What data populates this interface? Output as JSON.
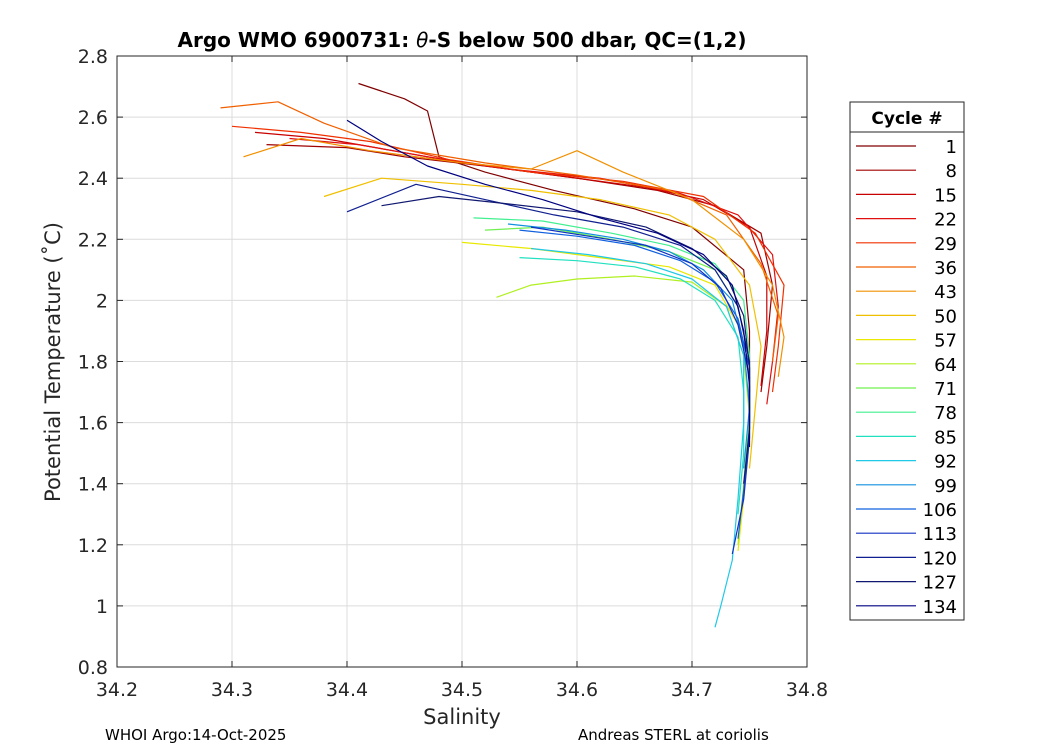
{
  "chart_data": {
    "type": "line",
    "title_prefix": "Argo WMO 6900731: ",
    "title_theta": "θ",
    "title_suffix": "-S below 500 dbar,  QC=(1,2)",
    "xlabel": "Salinity",
    "ylabel": "Potential Temperature (˚C)",
    "xlim": [
      34.2,
      34.8
    ],
    "ylim": [
      0.8,
      2.8
    ],
    "xticks": [
      "34.2",
      "34.3",
      "34.4",
      "34.5",
      "34.6",
      "34.7",
      "34.8"
    ],
    "yticks": [
      "0.8",
      "1",
      "1.2",
      "1.4",
      "1.6",
      "1.8",
      "2",
      "2.2",
      "2.4",
      "2.6",
      "2.8"
    ],
    "grid": true,
    "legend": {
      "title": "Cycle #",
      "position": "right",
      "entries": [
        "1",
        "8",
        "15",
        "22",
        "29",
        "36",
        "43",
        "50",
        "57",
        "64",
        "71",
        "78",
        "85",
        "92",
        "99",
        "106",
        "113",
        "120",
        "127",
        "134"
      ],
      "colors": [
        "#800000",
        "#a00000",
        "#c80000",
        "#e01010",
        "#f03000",
        "#f06000",
        "#f09000",
        "#f0c000",
        "#e8e800",
        "#b0f020",
        "#70f050",
        "#40f090",
        "#20e0c0",
        "#20c8e8",
        "#1090e0",
        "#1060e0",
        "#1030c0",
        "#102090",
        "#101870",
        "#000080"
      ]
    },
    "series": [
      {
        "values": [
          [
            34.41,
            2.71
          ],
          [
            34.45,
            2.66
          ],
          [
            34.47,
            2.62
          ],
          [
            34.48,
            2.47
          ],
          [
            34.52,
            2.42
          ],
          [
            34.58,
            2.36
          ],
          [
            34.65,
            2.3
          ],
          [
            34.7,
            2.24
          ],
          [
            34.745,
            2.1
          ],
          [
            34.75,
            1.9
          ],
          [
            34.75,
            1.7
          ]
        ]
      },
      {
        "values": [
          [
            34.33,
            2.51
          ],
          [
            34.4,
            2.5
          ],
          [
            34.45,
            2.47
          ],
          [
            34.52,
            2.44
          ],
          [
            34.6,
            2.4
          ],
          [
            34.67,
            2.36
          ],
          [
            34.72,
            2.31
          ],
          [
            34.76,
            2.22
          ],
          [
            34.77,
            2.05
          ],
          [
            34.765,
            1.85
          ],
          [
            34.76,
            1.7
          ]
        ]
      },
      {
        "values": [
          [
            34.32,
            2.55
          ],
          [
            34.38,
            2.53
          ],
          [
            34.44,
            2.49
          ],
          [
            34.5,
            2.45
          ],
          [
            34.58,
            2.41
          ],
          [
            34.66,
            2.37
          ],
          [
            34.71,
            2.33
          ],
          [
            34.75,
            2.24
          ],
          [
            34.765,
            2.08
          ],
          [
            34.765,
            1.9
          ],
          [
            34.76,
            1.72
          ]
        ]
      },
      {
        "values": [
          [
            34.35,
            2.53
          ],
          [
            34.41,
            2.51
          ],
          [
            34.47,
            2.47
          ],
          [
            34.54,
            2.43
          ],
          [
            34.62,
            2.4
          ],
          [
            34.69,
            2.35
          ],
          [
            34.74,
            2.28
          ],
          [
            34.77,
            2.15
          ],
          [
            34.775,
            1.98
          ],
          [
            34.77,
            1.8
          ],
          [
            34.765,
            1.66
          ]
        ]
      },
      {
        "values": [
          [
            34.3,
            2.57
          ],
          [
            34.36,
            2.55
          ],
          [
            34.42,
            2.52
          ],
          [
            34.49,
            2.46
          ],
          [
            34.56,
            2.42
          ],
          [
            34.64,
            2.39
          ],
          [
            34.71,
            2.34
          ],
          [
            34.755,
            2.22
          ],
          [
            34.78,
            2.05
          ],
          [
            34.775,
            1.85
          ],
          [
            34.77,
            1.7
          ]
        ]
      },
      {
        "values": [
          [
            34.29,
            2.63
          ],
          [
            34.34,
            2.65
          ],
          [
            34.38,
            2.58
          ],
          [
            34.44,
            2.5
          ],
          [
            34.52,
            2.45
          ],
          [
            34.6,
            2.41
          ],
          [
            34.68,
            2.36
          ],
          [
            34.73,
            2.28
          ],
          [
            34.76,
            2.12
          ],
          [
            34.775,
            1.95
          ],
          [
            34.77,
            1.8
          ]
        ]
      },
      {
        "values": [
          [
            34.31,
            2.47
          ],
          [
            34.36,
            2.53
          ],
          [
            34.42,
            2.49
          ],
          [
            34.5,
            2.45
          ],
          [
            34.56,
            2.43
          ],
          [
            34.6,
            2.49
          ],
          [
            34.64,
            2.42
          ],
          [
            34.7,
            2.33
          ],
          [
            34.745,
            2.2
          ],
          [
            34.77,
            2.05
          ],
          [
            34.78,
            1.88
          ],
          [
            34.775,
            1.75
          ]
        ]
      },
      {
        "values": [
          [
            34.38,
            2.34
          ],
          [
            34.43,
            2.4
          ],
          [
            34.5,
            2.38
          ],
          [
            34.56,
            2.36
          ],
          [
            34.62,
            2.33
          ],
          [
            34.68,
            2.28
          ],
          [
            34.72,
            2.2
          ],
          [
            34.75,
            2.05
          ],
          [
            34.76,
            1.85
          ],
          [
            34.755,
            1.65
          ],
          [
            34.75,
            1.45
          ]
        ]
      },
      {
        "values": [
          [
            34.5,
            2.19
          ],
          [
            34.56,
            2.17
          ],
          [
            34.62,
            2.14
          ],
          [
            34.68,
            2.11
          ],
          [
            34.72,
            2.05
          ],
          [
            34.74,
            1.92
          ],
          [
            34.75,
            1.75
          ],
          [
            34.75,
            1.55
          ],
          [
            34.745,
            1.35
          ],
          [
            34.74,
            1.18
          ]
        ]
      },
      {
        "values": [
          [
            34.53,
            2.01
          ],
          [
            34.56,
            2.05
          ],
          [
            34.6,
            2.07
          ],
          [
            34.65,
            2.08
          ],
          [
            34.7,
            2.06
          ],
          [
            34.73,
            1.98
          ],
          [
            34.745,
            1.82
          ],
          [
            34.75,
            1.62
          ],
          [
            34.745,
            1.4
          ],
          [
            34.74,
            1.2
          ]
        ]
      },
      {
        "values": [
          [
            34.52,
            2.23
          ],
          [
            34.57,
            2.24
          ],
          [
            34.63,
            2.2
          ],
          [
            34.68,
            2.16
          ],
          [
            34.72,
            2.1
          ],
          [
            34.74,
            1.98
          ],
          [
            34.75,
            1.8
          ],
          [
            34.75,
            1.6
          ],
          [
            34.745,
            1.4
          ]
        ]
      },
      {
        "values": [
          [
            34.51,
            2.27
          ],
          [
            34.57,
            2.26
          ],
          [
            34.63,
            2.22
          ],
          [
            34.68,
            2.18
          ],
          [
            34.72,
            2.12
          ],
          [
            34.745,
            2.0
          ],
          [
            34.75,
            1.82
          ],
          [
            34.75,
            1.62
          ]
        ]
      },
      {
        "values": [
          [
            34.55,
            2.14
          ],
          [
            34.6,
            2.13
          ],
          [
            34.65,
            2.11
          ],
          [
            34.69,
            2.07
          ],
          [
            34.72,
            2.0
          ],
          [
            34.74,
            1.88
          ],
          [
            34.745,
            1.7
          ],
          [
            34.745,
            1.5
          ],
          [
            34.74,
            1.3
          ]
        ]
      },
      {
        "values": [
          [
            34.56,
            2.17
          ],
          [
            34.61,
            2.15
          ],
          [
            34.66,
            2.12
          ],
          [
            34.7,
            2.07
          ],
          [
            34.73,
            1.98
          ],
          [
            34.745,
            1.82
          ],
          [
            34.745,
            1.6
          ],
          [
            34.74,
            1.35
          ],
          [
            34.735,
            1.15
          ],
          [
            34.725,
            1.0
          ],
          [
            34.72,
            0.93
          ]
        ]
      },
      {
        "values": [
          [
            34.54,
            2.25
          ],
          [
            34.59,
            2.23
          ],
          [
            34.64,
            2.2
          ],
          [
            34.68,
            2.16
          ],
          [
            34.71,
            2.1
          ],
          [
            34.735,
            2.0
          ],
          [
            34.745,
            1.85
          ],
          [
            34.75,
            1.65
          ],
          [
            34.745,
            1.45
          ]
        ]
      },
      {
        "values": [
          [
            34.55,
            2.23
          ],
          [
            34.6,
            2.21
          ],
          [
            34.65,
            2.18
          ],
          [
            34.69,
            2.13
          ],
          [
            34.72,
            2.06
          ],
          [
            34.74,
            1.94
          ],
          [
            34.75,
            1.78
          ],
          [
            34.75,
            1.58
          ],
          [
            34.745,
            1.38
          ],
          [
            34.74,
            1.22
          ]
        ]
      },
      {
        "values": [
          [
            34.56,
            2.24
          ],
          [
            34.61,
            2.21
          ],
          [
            34.66,
            2.18
          ],
          [
            34.7,
            2.12
          ],
          [
            34.725,
            2.04
          ],
          [
            34.74,
            1.92
          ],
          [
            34.75,
            1.75
          ],
          [
            34.75,
            1.55
          ],
          [
            34.745,
            1.35
          ],
          [
            34.735,
            1.17
          ]
        ]
      },
      {
        "values": [
          [
            34.4,
            2.29
          ],
          [
            34.46,
            2.38
          ],
          [
            34.52,
            2.33
          ],
          [
            34.58,
            2.28
          ],
          [
            34.64,
            2.24
          ],
          [
            34.69,
            2.18
          ],
          [
            34.72,
            2.1
          ],
          [
            34.74,
            1.98
          ],
          [
            34.75,
            1.8
          ],
          [
            34.75,
            1.6
          ]
        ]
      },
      {
        "values": [
          [
            34.43,
            2.31
          ],
          [
            34.48,
            2.34
          ],
          [
            34.53,
            2.32
          ],
          [
            34.6,
            2.29
          ],
          [
            34.66,
            2.24
          ],
          [
            34.7,
            2.17
          ],
          [
            34.73,
            2.08
          ],
          [
            34.745,
            1.95
          ],
          [
            34.75,
            1.78
          ],
          [
            34.75,
            1.58
          ],
          [
            34.745,
            1.4
          ]
        ]
      },
      {
        "values": [
          [
            34.4,
            2.59
          ],
          [
            34.43,
            2.52
          ],
          [
            34.47,
            2.44
          ],
          [
            34.52,
            2.38
          ],
          [
            34.57,
            2.33
          ],
          [
            34.62,
            2.27
          ],
          [
            34.67,
            2.22
          ],
          [
            34.71,
            2.15
          ],
          [
            34.735,
            2.05
          ],
          [
            34.745,
            1.9
          ],
          [
            34.75,
            1.72
          ],
          [
            34.75,
            1.52
          ]
        ]
      }
    ]
  },
  "footer": {
    "left": "WHOI Argo:14-Oct-2025",
    "right": "Andreas STERL at coriolis"
  }
}
